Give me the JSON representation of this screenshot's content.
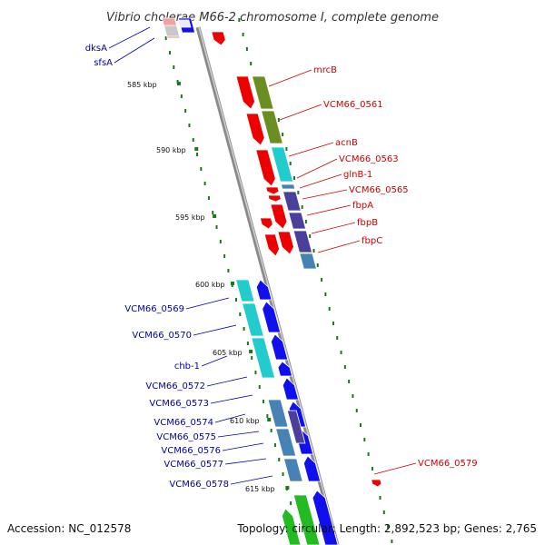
{
  "title": "Vibrio cholerae M66-2 chromosome I, complete genome",
  "accession": "Accession: NC_012578",
  "summary": "Topology: circular; Length: 2,892,523 bp; Genes: 2,765",
  "colors": {
    "forward_label": "#cc0000",
    "reverse_label": "#0000aa",
    "backbone": "#8a8a8a",
    "tick": "#1a7a1a",
    "red_gene": "#ee0000",
    "blue_gene": "#1010ee",
    "olive_cog": "#6b8e23",
    "cyan_cog": "#22cccc",
    "purple_cog": "#4a3f9a",
    "steel_cog": "#4682b4",
    "green_cog": "#22bb22"
  },
  "kbp_marks": [
    "585 kbp",
    "590 kbp",
    "595 kbp",
    "600 kbp",
    "605 kbp",
    "610 kbp",
    "615 kbp"
  ],
  "forward_genes": [
    "mrcB",
    "VCM66_0561",
    "acnB",
    "VCM66_0563",
    "glnB-1",
    "VCM66_0565",
    "fbpA",
    "fbpB",
    "fbpC",
    "VCM66_0579"
  ],
  "reverse_genes": [
    "dksA",
    "sfsA",
    "VCM66_0569",
    "VCM66_0570",
    "chb-1",
    "VCM66_0572",
    "VCM66_0573",
    "VCM66_0574",
    "VCM66_0575",
    "VCM66_0576",
    "VCM66_0577",
    "VCM66_0578"
  ]
}
